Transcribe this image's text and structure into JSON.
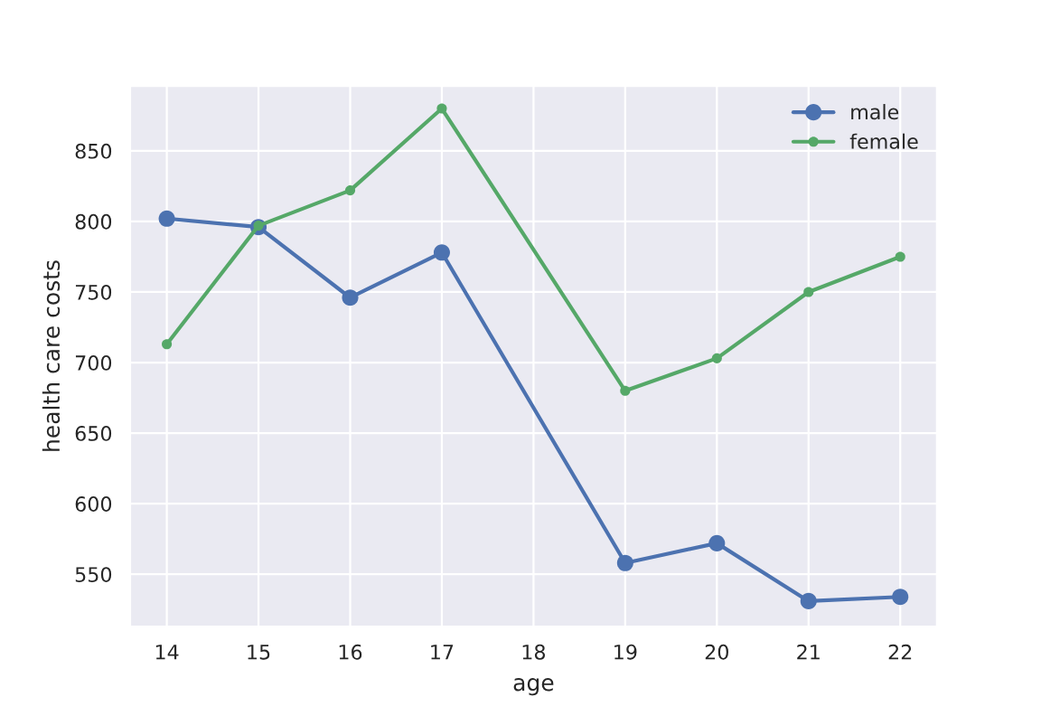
{
  "chart_data": {
    "type": "line",
    "xlabel": "age",
    "ylabel": "health care costs",
    "x": [
      14,
      15,
      16,
      17,
      19,
      20,
      21,
      22
    ],
    "series": [
      {
        "name": "male",
        "color": "#4c72b0",
        "values": [
          802,
          796,
          746,
          778,
          558,
          572,
          531,
          534
        ]
      },
      {
        "name": "female",
        "color": "#55a868",
        "values": [
          713,
          797,
          822,
          880,
          680,
          703,
          750,
          775
        ]
      }
    ],
    "xlim": [
      13.6,
      22.4
    ],
    "ylim": [
      513,
      896
    ],
    "xticks": [
      14,
      15,
      16,
      17,
      18,
      19,
      20,
      21,
      22
    ],
    "yticks": [
      550,
      600,
      650,
      700,
      750,
      800,
      850
    ],
    "grid": true,
    "legend": "top right",
    "marker": "circle",
    "line_style": "solid"
  }
}
